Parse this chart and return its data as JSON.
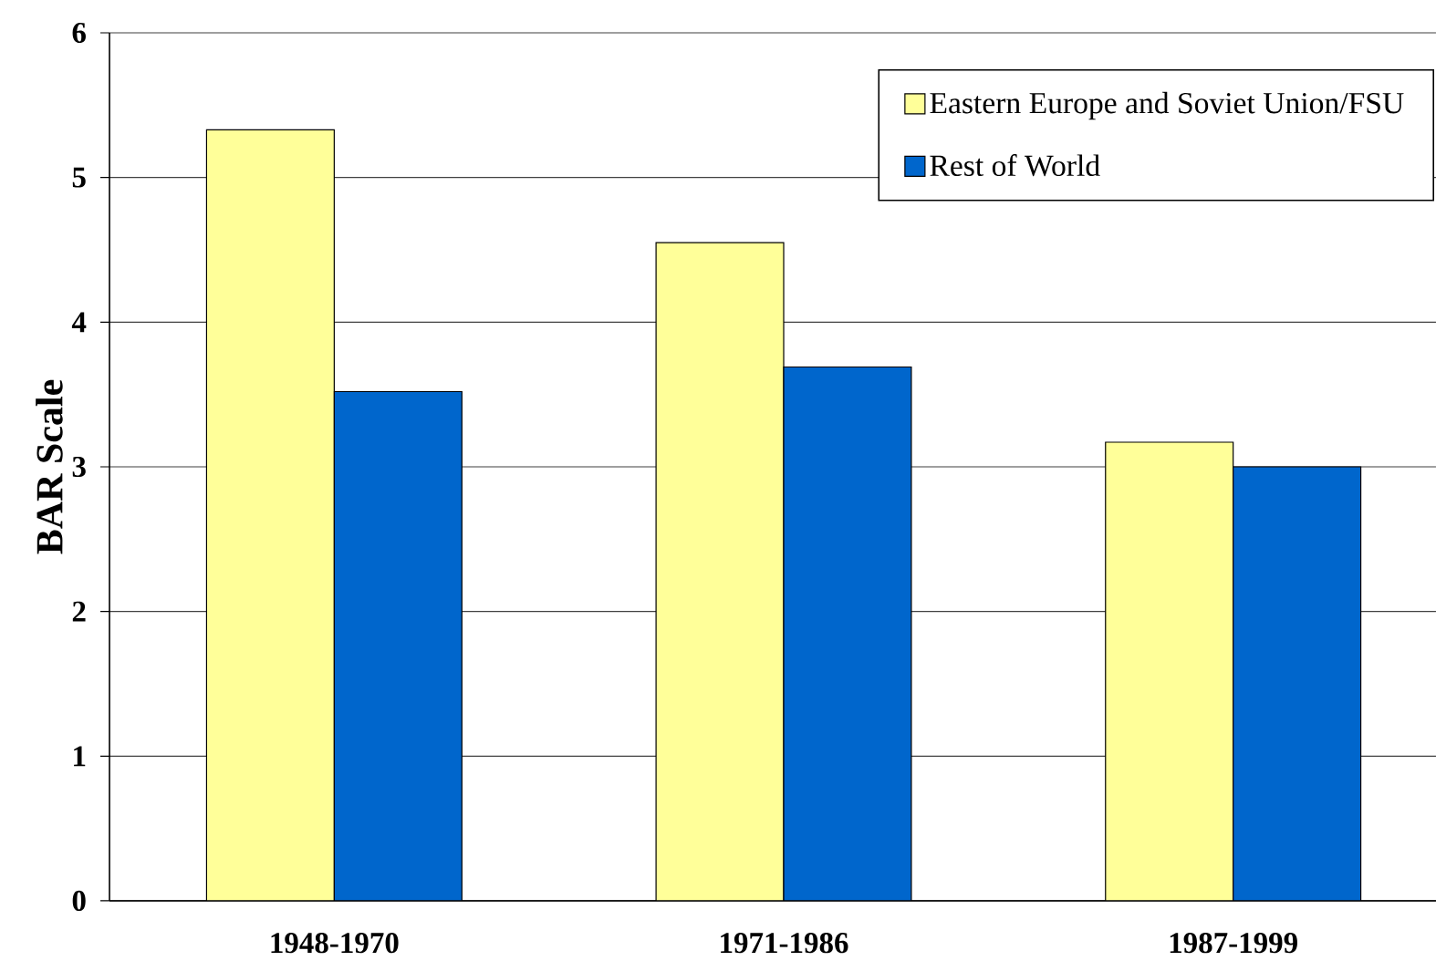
{
  "chart_data": {
    "type": "bar",
    "ylabel": "BAR Scale",
    "categories": [
      "1948-1970",
      "1971-1986",
      "1987-1999"
    ],
    "series": [
      {
        "name": "Eastern Europe and Soviet Union/FSU",
        "color": "#ffff99",
        "values": [
          5.33,
          4.55,
          3.17
        ]
      },
      {
        "name": "Rest of World",
        "color": "#0066cc",
        "values": [
          3.52,
          3.69,
          3.0
        ]
      }
    ],
    "ylim": [
      0,
      6
    ],
    "yticks": [
      0,
      1,
      2,
      3,
      4,
      5,
      6
    ],
    "grid": "y",
    "legend": "top right"
  }
}
